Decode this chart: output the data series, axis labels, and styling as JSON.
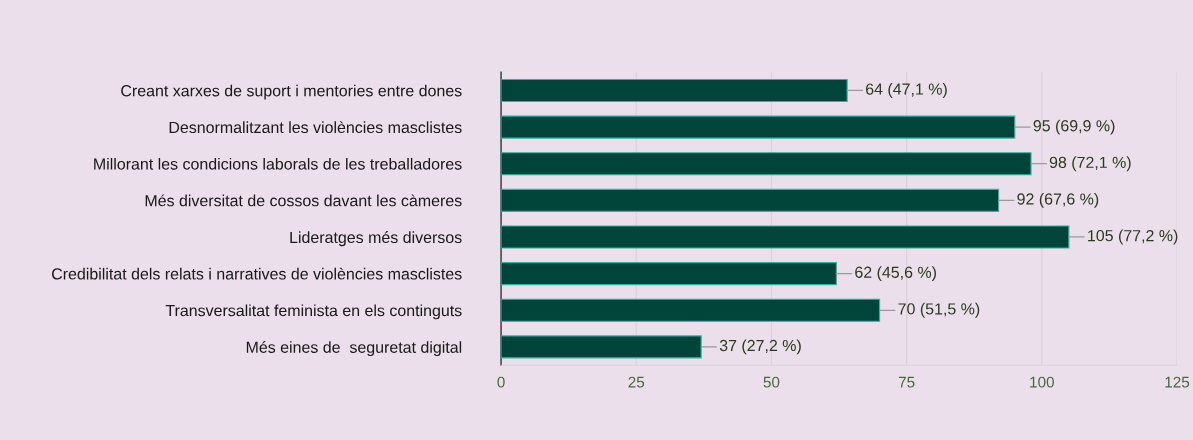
{
  "chart_data": {
    "type": "bar",
    "orientation": "horizontal",
    "categories": [
      "Creant xarxes de suport i mentories entre dones",
      "Desnormalitzant les violències masclistes",
      "Millorant les condicions laborals de les treballadores",
      "Més diversitat de cossos davant les càmeres",
      "Lideratges més diversos",
      "Credibilitat dels relats i narratives de violències masclistes",
      "Transversalitat feminista en els continguts",
      "Més eines de  seguretat digital"
    ],
    "values": [
      64,
      95,
      98,
      92,
      105,
      62,
      70,
      37
    ],
    "value_labels": [
      "64 (47,1 %)",
      "95 (69,9 %)",
      "98 (72,1 %)",
      "92 (67,6 %)",
      "105 (77,2 %)",
      "62 (45,6 %)",
      "70 (51,5 %)",
      "37 (27,2 %)"
    ],
    "color": "#00443a",
    "xlim": [
      0,
      125
    ],
    "xticks": [
      0,
      25,
      50,
      75,
      100,
      125
    ],
    "grid": "x",
    "legend": false
  }
}
